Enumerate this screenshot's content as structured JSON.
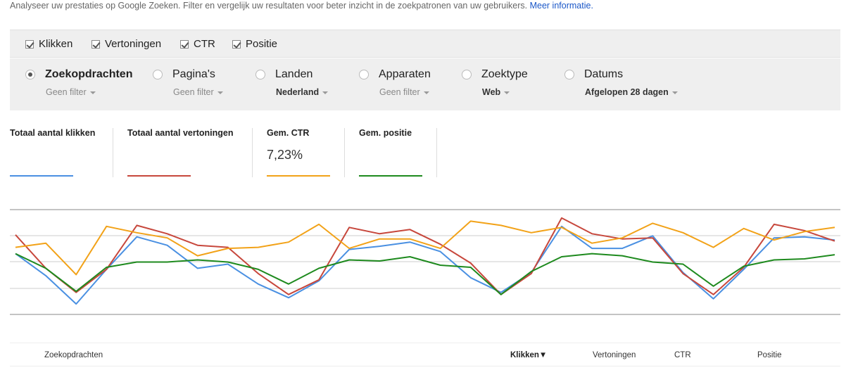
{
  "intro": {
    "text": "Analyseer uw prestaties op Google Zoeken. Filter en vergelijk uw resultaten voor beter inzicht in de zoekpatronen van uw gebruikers.",
    "link": "Meer informatie."
  },
  "checkboxes": [
    {
      "label": "Klikken",
      "checked": true
    },
    {
      "label": "Vertoningen",
      "checked": true
    },
    {
      "label": "CTR",
      "checked": true
    },
    {
      "label": "Positie",
      "checked": true
    }
  ],
  "dimensions": [
    {
      "label": "Zoekopdrachten",
      "filter": "Geen filter",
      "selected": true
    },
    {
      "label": "Pagina's",
      "filter": "Geen filter",
      "selected": false
    },
    {
      "label": "Landen",
      "filter": "Nederland",
      "selected": false
    },
    {
      "label": "Apparaten",
      "filter": "Geen filter",
      "selected": false
    },
    {
      "label": "Zoektype",
      "filter": "Web",
      "selected": false
    },
    {
      "label": "Datums",
      "filter": "Afgelopen 28 dagen",
      "selected": false
    }
  ],
  "metrics": [
    {
      "label": "Totaal aantal klikken",
      "value": "",
      "color": "#4a90e2"
    },
    {
      "label": "Totaal aantal vertoningen",
      "value": "",
      "color": "#c7473c"
    },
    {
      "label": "Gem. CTR",
      "value": "7,23%",
      "color": "#f2a218"
    },
    {
      "label": "Gem. positie",
      "value": "",
      "color": "#1e8a1e"
    }
  ],
  "chart_data": {
    "type": "line",
    "x": [
      1,
      2,
      3,
      4,
      5,
      6,
      7,
      8,
      9,
      10,
      11,
      12,
      13,
      14,
      15,
      16,
      17,
      18,
      19,
      20,
      21,
      22,
      23,
      24,
      25,
      26,
      27,
      28
    ],
    "grid": true,
    "series": [
      {
        "color": "#4a90e2",
        "values": [
          0.58,
          0.37,
          0.1,
          0.43,
          0.74,
          0.66,
          0.44,
          0.48,
          0.29,
          0.16,
          0.32,
          0.62,
          0.65,
          0.69,
          0.6,
          0.35,
          0.21,
          0.4,
          0.84,
          0.63,
          0.63,
          0.75,
          0.4,
          0.15,
          0.43,
          0.73,
          0.74,
          0.71
        ]
      },
      {
        "color": "#c7473c",
        "values": [
          0.76,
          0.44,
          0.21,
          0.43,
          0.85,
          0.77,
          0.66,
          0.64,
          0.39,
          0.19,
          0.33,
          0.83,
          0.77,
          0.81,
          0.67,
          0.49,
          0.19,
          0.39,
          0.92,
          0.77,
          0.72,
          0.73,
          0.39,
          0.19,
          0.45,
          0.86,
          0.8,
          0.7
        ]
      },
      {
        "color": "#f2a218",
        "values": [
          0.64,
          0.68,
          0.38,
          0.84,
          0.78,
          0.73,
          0.56,
          0.63,
          0.64,
          0.69,
          0.86,
          0.63,
          0.72,
          0.72,
          0.63,
          0.89,
          0.85,
          0.78,
          0.83,
          0.68,
          0.73,
          0.87,
          0.78,
          0.64,
          0.82,
          0.71,
          0.79,
          0.83
        ]
      },
      {
        "color": "#1e8a1e",
        "values": [
          0.58,
          0.44,
          0.22,
          0.45,
          0.5,
          0.5,
          0.52,
          0.5,
          0.43,
          0.29,
          0.44,
          0.52,
          0.51,
          0.55,
          0.47,
          0.45,
          0.19,
          0.41,
          0.55,
          0.58,
          0.56,
          0.5,
          0.48,
          0.27,
          0.46,
          0.52,
          0.53,
          0.57
        ]
      }
    ]
  },
  "table_header": {
    "query": "Zoekopdrachten",
    "clicks": "Klikken▼",
    "impressions": "Vertoningen",
    "ctr": "CTR",
    "position": "Positie"
  }
}
